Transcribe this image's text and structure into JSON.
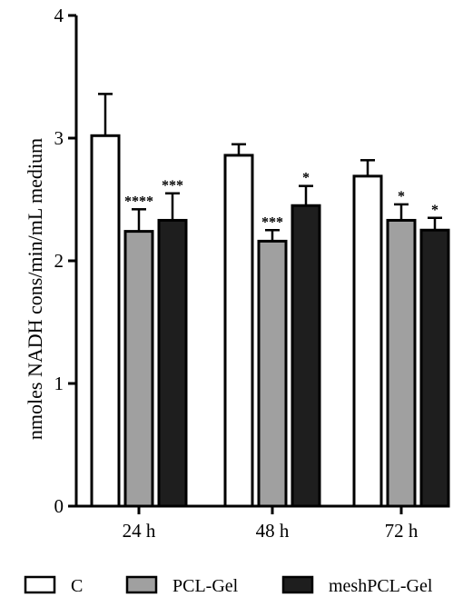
{
  "chart_data": {
    "type": "bar",
    "title": "",
    "xlabel": "",
    "ylabel": "nmoles NADH cons/min/mL medium",
    "ylim": [
      0,
      4
    ],
    "yticks": [
      "0",
      "1",
      "2",
      "3",
      "4"
    ],
    "categories": [
      "24 h",
      "48 h",
      "72 h"
    ],
    "series": [
      {
        "name": "C",
        "color": "#ffffff",
        "values": [
          3.02,
          2.86,
          2.69
        ],
        "errors": [
          0.34,
          0.09,
          0.13
        ],
        "significance": [
          "",
          "",
          ""
        ]
      },
      {
        "name": "PCL-Gel",
        "color": "#a0a0a0",
        "values": [
          2.24,
          2.16,
          2.33
        ],
        "errors": [
          0.18,
          0.09,
          0.13
        ],
        "significance": [
          "****",
          "***",
          "*"
        ]
      },
      {
        "name": "meshPCL-Gel",
        "color": "#1e1e1e",
        "values": [
          2.33,
          2.45,
          2.25
        ],
        "errors": [
          0.22,
          0.16,
          0.1
        ],
        "significance": [
          "***",
          "*",
          "*"
        ]
      }
    ],
    "legend_position": "bottom",
    "grid": false
  }
}
